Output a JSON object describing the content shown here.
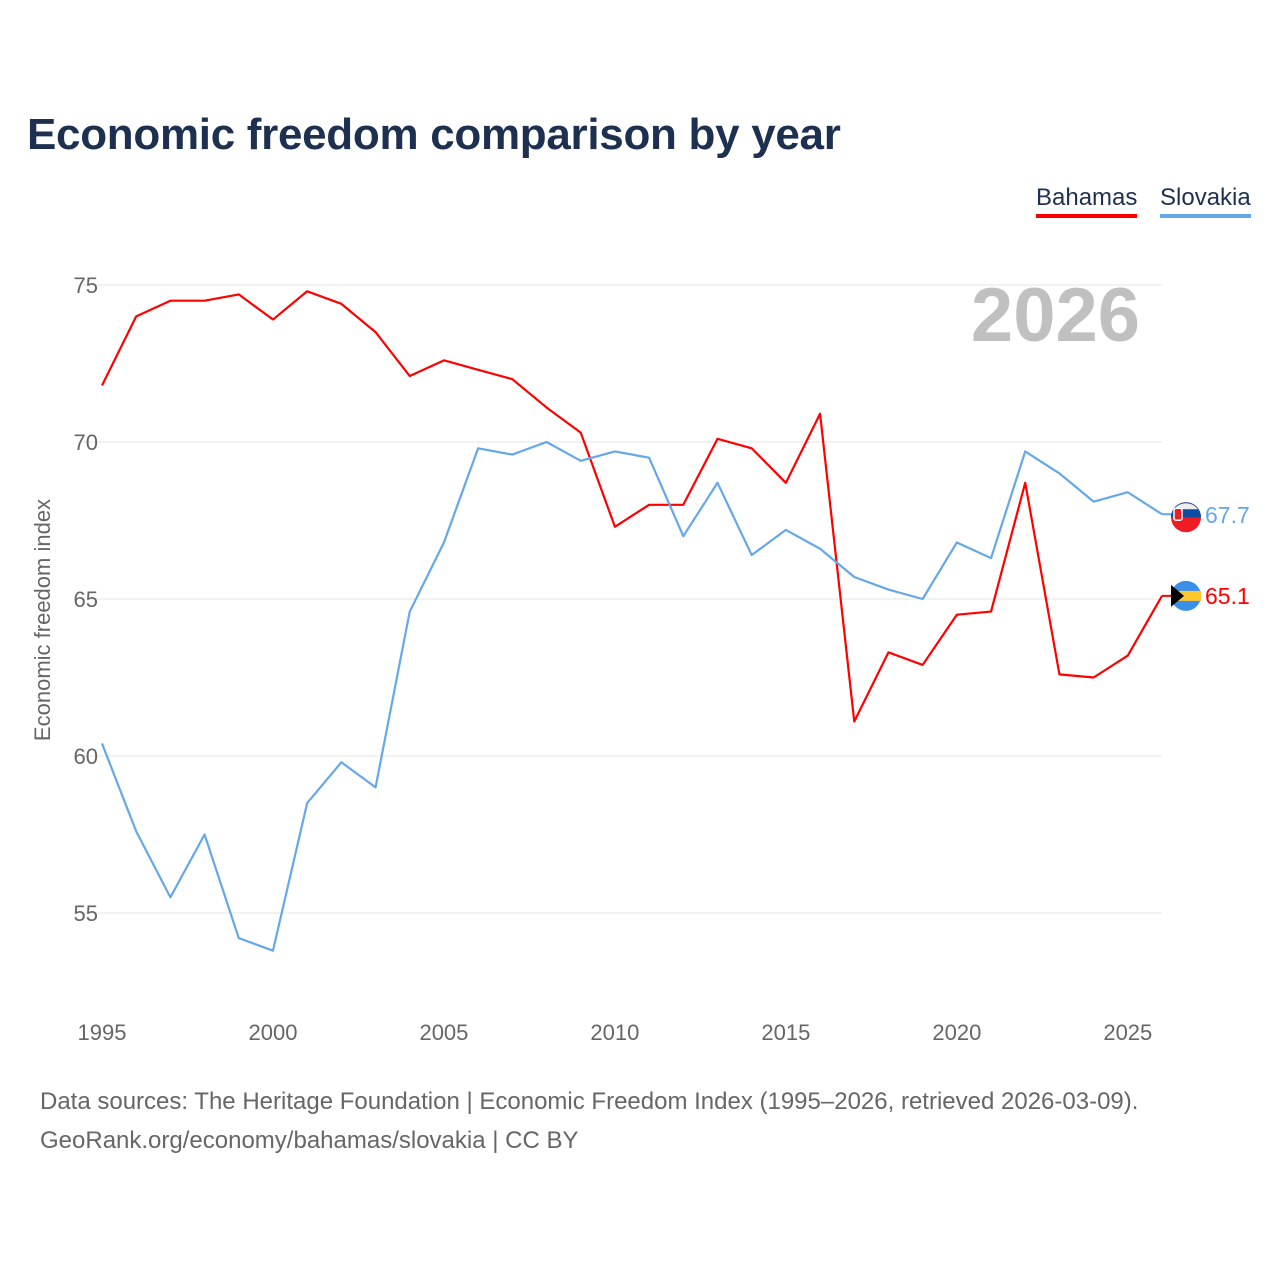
{
  "chart_data": {
    "type": "line",
    "title": "Economic freedom comparison by year",
    "xlabel": "",
    "ylabel": "Economic freedom index",
    "xlim": [
      1995,
      2026
    ],
    "ylim": [
      52,
      77
    ],
    "yticks": [
      55,
      60,
      65,
      70,
      75
    ],
    "xticks": [
      1995,
      2000,
      2005,
      2010,
      2015,
      2020,
      2025
    ],
    "grid": true,
    "legend_placement": "top-right",
    "year_watermark": "2026",
    "x": [
      1995,
      1996,
      1997,
      1998,
      1999,
      2000,
      2001,
      2002,
      2003,
      2004,
      2005,
      2006,
      2007,
      2008,
      2009,
      2010,
      2011,
      2012,
      2013,
      2014,
      2015,
      2016,
      2017,
      2018,
      2019,
      2020,
      2021,
      2022,
      2023,
      2024,
      2025,
      2026
    ],
    "series": [
      {
        "name": "Bahamas",
        "color": "#ff0000",
        "end_label": "65.1",
        "values": [
          71.8,
          74.0,
          74.5,
          74.5,
          74.7,
          73.9,
          74.8,
          74.4,
          73.5,
          72.1,
          72.6,
          72.3,
          72.0,
          71.1,
          70.3,
          67.3,
          68.0,
          68.0,
          70.1,
          69.8,
          68.7,
          70.9,
          61.1,
          63.3,
          62.9,
          64.5,
          64.6,
          68.7,
          62.6,
          62.5,
          63.2,
          65.1
        ]
      },
      {
        "name": "Slovakia",
        "color": "#64a8ea",
        "end_label": "67.7",
        "values": [
          60.4,
          57.6,
          55.5,
          57.5,
          54.2,
          53.8,
          58.5,
          59.8,
          59.0,
          64.6,
          66.8,
          69.8,
          69.6,
          70.0,
          69.4,
          69.7,
          69.5,
          67.0,
          68.7,
          66.4,
          67.2,
          66.6,
          65.7,
          65.3,
          65.0,
          66.8,
          66.3,
          69.7,
          69.0,
          68.1,
          68.4,
          67.7
        ]
      }
    ]
  },
  "footer": {
    "line1": "Data sources: The Heritage Foundation | Economic Freedom Index (1995–2026, retrieved 2026-03-09).",
    "line2": "GeoRank.org/economy/bahamas/slovakia | CC BY"
  }
}
